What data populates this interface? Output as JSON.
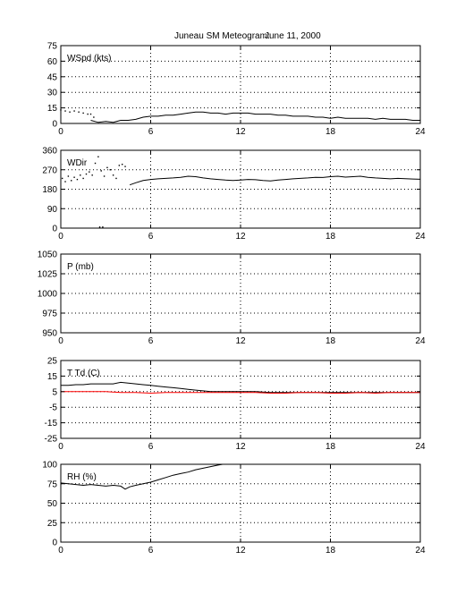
{
  "figure": {
    "title": "Juneau SM Meteogram:",
    "date": "June 11, 2000"
  },
  "chart_data": [
    {
      "type": "line",
      "title": "",
      "panel_label": "WSpd (kts)",
      "xlim": [
        0,
        24
      ],
      "ylim": [
        0,
        75
      ],
      "xticks": [
        "0",
        "6",
        "12",
        "18",
        "24"
      ],
      "yticks": [
        "0",
        "15",
        "30",
        "45",
        "60",
        "75"
      ],
      "grid": true,
      "series": [
        {
          "color": "#000000",
          "style": "dots",
          "x": [
            0,
            0.3,
            0.6,
            0.9,
            1.2,
            1.5,
            1.8,
            2.0,
            2.2
          ],
          "y": [
            13,
            12,
            11,
            12,
            11,
            10,
            9,
            9,
            6
          ]
        },
        {
          "color": "#000000",
          "style": "line",
          "x": [
            2,
            2.5,
            3,
            3.5,
            4,
            4.5,
            5,
            5.5,
            6,
            6.5,
            7,
            7.5,
            8,
            8.5,
            9,
            9.5,
            10,
            10.5,
            11,
            11.5,
            12,
            12.5,
            13,
            13.5,
            14,
            14.5,
            15,
            15.5,
            16,
            16.5,
            17,
            17.5,
            18,
            18.5,
            19,
            19.5,
            20,
            20.5,
            21,
            21.5,
            22,
            22.5,
            23,
            23.5,
            24
          ],
          "y": [
            3,
            1,
            2,
            1,
            3,
            3,
            4,
            6,
            7,
            7,
            8,
            8,
            9,
            10,
            11,
            11,
            10,
            10,
            9,
            10,
            10,
            10,
            9,
            9,
            9,
            8,
            8,
            7,
            7,
            7,
            6,
            6,
            5,
            6,
            5,
            5,
            5,
            5,
            4,
            5,
            4,
            4,
            4,
            3,
            3
          ]
        }
      ]
    },
    {
      "type": "line",
      "title": "",
      "panel_label": "WDir",
      "xlim": [
        0,
        24
      ],
      "ylim": [
        0,
        360
      ],
      "xticks": [
        "0",
        "6",
        "12",
        "18",
        "24"
      ],
      "yticks": [
        "0",
        "90",
        "180",
        "270",
        "360"
      ],
      "grid": true,
      "series": [
        {
          "color": "#000000",
          "style": "dots",
          "x": [
            0.1,
            0.3,
            0.5,
            0.7,
            0.9,
            1.1,
            1.3,
            1.5,
            1.7,
            1.9,
            2.1,
            2.3,
            2.5,
            2.7,
            2.9,
            3.1,
            3.3,
            3.5,
            3.7,
            3.9,
            4.1,
            4.3,
            2.6,
            2.8
          ],
          "y": [
            230,
            215,
            240,
            220,
            235,
            225,
            245,
            230,
            250,
            260,
            245,
            300,
            330,
            265,
            240,
            280,
            270,
            245,
            230,
            290,
            295,
            285,
            5,
            5
          ]
        },
        {
          "color": "#000000",
          "style": "line",
          "x": [
            4.6,
            5,
            5.5,
            6,
            6.5,
            7,
            7.5,
            8,
            8.5,
            9,
            9.5,
            10,
            10.5,
            11,
            11.5,
            12,
            12.5,
            13,
            13.5,
            14,
            14.5,
            15,
            15.5,
            16,
            16.5,
            17,
            17.5,
            18,
            18.5,
            19,
            19.5,
            20,
            20.5,
            21,
            21.5,
            22,
            22.5,
            23,
            23.5,
            24
          ],
          "y": [
            200,
            210,
            220,
            225,
            228,
            230,
            232,
            235,
            240,
            238,
            232,
            228,
            225,
            222,
            220,
            222,
            225,
            224,
            220,
            218,
            222,
            225,
            228,
            230,
            232,
            235,
            234,
            238,
            240,
            236,
            238,
            240,
            235,
            232,
            230,
            228,
            230,
            229,
            227,
            226
          ]
        }
      ]
    },
    {
      "type": "line",
      "title": "",
      "panel_label": "P (mb)",
      "xlim": [
        0,
        24
      ],
      "ylim": [
        950,
        1050
      ],
      "xticks": [
        "0",
        "6",
        "12",
        "18",
        "24"
      ],
      "yticks": [
        "950",
        "975",
        "1000",
        "1025",
        "1050"
      ],
      "grid": true,
      "series": []
    },
    {
      "type": "line",
      "title": "",
      "panel_label": "T Td (C)",
      "xlim": [
        0,
        24
      ],
      "ylim": [
        -25,
        25
      ],
      "xticks": [
        "0",
        "6",
        "12",
        "18",
        "24"
      ],
      "yticks": [
        "-25",
        "-15",
        "-5",
        "5",
        "15",
        "25"
      ],
      "grid": true,
      "series": [
        {
          "color": "#000000",
          "style": "line",
          "x": [
            0,
            0.5,
            1,
            1.5,
            2,
            2.5,
            3,
            3.5,
            4,
            4.5,
            5,
            5.5,
            6,
            6.5,
            7,
            7.5,
            8,
            8.5,
            9,
            9.5,
            10,
            11,
            12,
            13,
            14,
            15,
            16,
            17,
            18,
            19,
            20,
            21,
            22,
            23,
            24
          ],
          "y": [
            9,
            9,
            9.5,
            9.5,
            10,
            10,
            10,
            10,
            11,
            10.5,
            10,
            9.5,
            9,
            8.5,
            8,
            7.5,
            7,
            6.5,
            6,
            5.5,
            5,
            5,
            5,
            5,
            4.5,
            4.5,
            4.5,
            4.5,
            4.5,
            4.5,
            4.5,
            4.5,
            4.5,
            4.5,
            4.5
          ]
        },
        {
          "color": "#ff0000",
          "style": "line",
          "x": [
            0,
            1,
            2,
            3,
            4,
            5,
            6,
            7,
            8,
            9,
            10,
            11,
            12,
            13,
            14,
            15,
            16,
            17,
            18,
            19,
            20,
            21,
            22,
            23,
            24
          ],
          "y": [
            5,
            5,
            5,
            5,
            4.5,
            4.5,
            4,
            4.5,
            4.5,
            4.5,
            4.5,
            4.5,
            4.5,
            4.5,
            4,
            4,
            4.5,
            4.5,
            4,
            4,
            4.5,
            4,
            4.5,
            4.5,
            4.5
          ]
        }
      ]
    },
    {
      "type": "line",
      "title": "",
      "panel_label": "RH (%)",
      "xlim": [
        0,
        24
      ],
      "ylim": [
        0,
        100
      ],
      "xticks": [
        "0",
        "6",
        "12",
        "18",
        "24"
      ],
      "yticks": [
        "0",
        "25",
        "50",
        "75",
        "100"
      ],
      "grid": true,
      "series": [
        {
          "color": "#000000",
          "style": "line",
          "x": [
            0,
            0.5,
            1,
            1.5,
            2,
            2.5,
            3,
            3.5,
            4,
            4.3,
            4.6,
            5,
            5.5,
            6,
            6.5,
            7,
            7.5,
            8,
            8.5,
            9,
            9.5,
            10,
            10.5,
            10.8
          ],
          "y": [
            76,
            75,
            74,
            73,
            74,
            73,
            72,
            73,
            72,
            68,
            71,
            73,
            75,
            77,
            80,
            83,
            86,
            88,
            90,
            93,
            95,
            97,
            99,
            100
          ]
        }
      ]
    }
  ]
}
